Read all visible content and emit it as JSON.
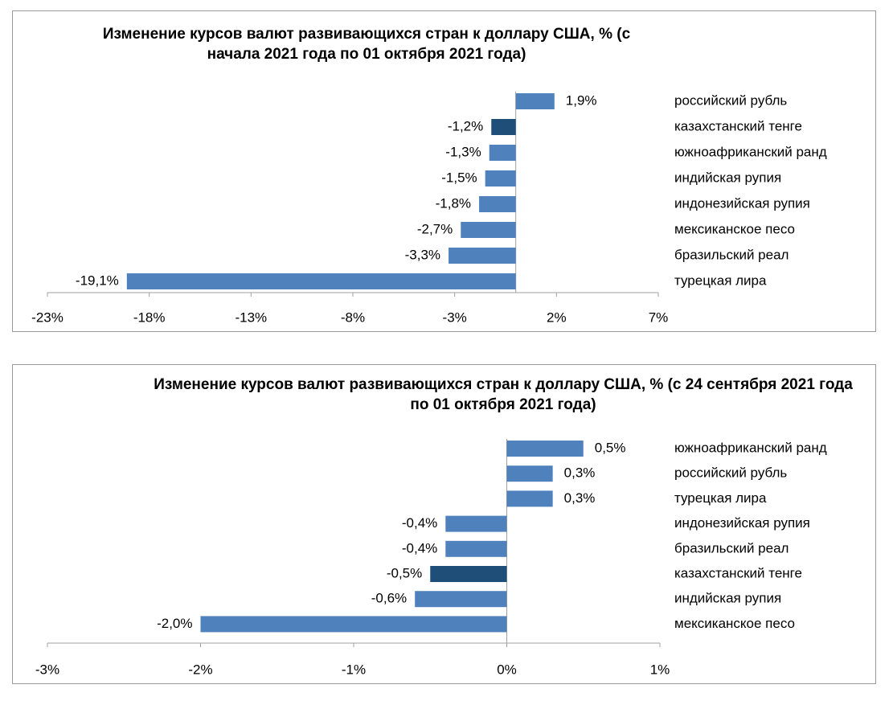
{
  "colors": {
    "bar": "#4f81bd",
    "highlight": "#1f4e79",
    "axis": "#a0a0a0"
  },
  "chart_data": [
    {
      "type": "bar",
      "orientation": "horizontal",
      "title": "Изменение курсов валют развивающихся стран к доллару США, % (с начала 2021 года по 01 октября 2021 года)",
      "categories": [
        "российский рубль",
        "казахстанский тенге",
        "южноафриканский ранд",
        "индийская рупия",
        "индонезийская рупия",
        "мексиканское песо",
        "бразильский реал",
        "турецкая лира"
      ],
      "values": [
        1.9,
        -1.2,
        -1.3,
        -1.5,
        -1.8,
        -2.7,
        -3.3,
        -19.1
      ],
      "value_labels": [
        "1,9%",
        "-1,2%",
        "-1,3%",
        "-1,5%",
        "-1,8%",
        "-2,7%",
        "-3,3%",
        "-19,1%"
      ],
      "highlight_index": 1,
      "xlim": [
        -23,
        7
      ],
      "xticks": [
        -23,
        -18,
        -13,
        -8,
        -3,
        2,
        7
      ],
      "xtick_labels": [
        "-23%",
        "-18%",
        "-13%",
        "-8%",
        "-3%",
        "2%",
        "7%"
      ],
      "xlabel": "",
      "ylabel": "",
      "grid": false,
      "legend": "none"
    },
    {
      "type": "bar",
      "orientation": "horizontal",
      "title": "Изменение курсов валют развивающихся стран к доллару США, % (с 24 сентября 2021 года по 01 октября 2021 года)",
      "categories": [
        "южноафриканский ранд",
        "российский рубль",
        "турецкая лира",
        "индонезийская рупия",
        "бразильский реал",
        "казахстанский тенге",
        "индийская рупия",
        "мексиканское песо"
      ],
      "values": [
        0.5,
        0.3,
        0.3,
        -0.4,
        -0.4,
        -0.5,
        -0.6,
        -2.0
      ],
      "value_labels": [
        "0,5%",
        "0,3%",
        "0,3%",
        "-0,4%",
        "-0,4%",
        "-0,5%",
        "-0,6%",
        "-2,0%"
      ],
      "highlight_index": 5,
      "xlim": [
        -3,
        1
      ],
      "xticks": [
        -3,
        -2,
        -1,
        0,
        1
      ],
      "xtick_labels": [
        "-3%",
        "-2%",
        "-1%",
        "0%",
        "1%"
      ],
      "xlabel": "",
      "ylabel": "",
      "grid": false,
      "legend": "none"
    }
  ]
}
